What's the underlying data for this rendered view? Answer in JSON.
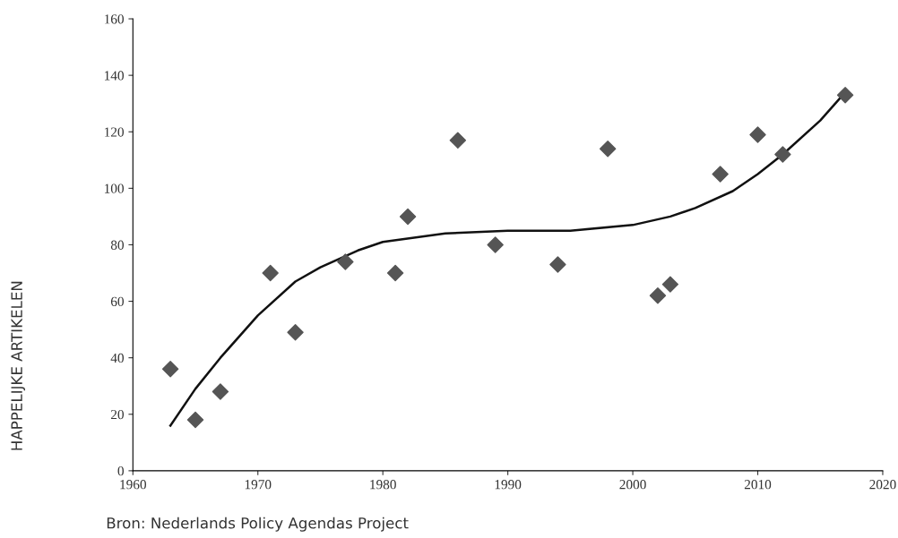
{
  "chart_data": {
    "type": "scatter",
    "annotations": [
      "Bron: Nederlands Policy Agendas Project",
      "HAPPELIJKE ARTIKELEN"
    ],
    "xlim": [
      1960,
      2020
    ],
    "xticks": [
      1960,
      1970,
      1980,
      1990,
      2000,
      2010,
      2020
    ],
    "ylim": [
      0,
      160
    ],
    "yticks": [
      0,
      20,
      40,
      60,
      80,
      100,
      120,
      140,
      160
    ],
    "grid": false,
    "legend": false,
    "series": [
      {
        "color": "#555555",
        "marker": "diamond",
        "x": [
          1963,
          1965,
          1967,
          1971,
          1973,
          1977,
          1981,
          1982,
          1986,
          1989,
          1994,
          1998,
          2002,
          2003,
          2007,
          2010,
          2012,
          2017
        ],
        "values": [
          36,
          18,
          28,
          70,
          49,
          74,
          70,
          90,
          117,
          80,
          73,
          114,
          62,
          66,
          105,
          119,
          112,
          133
        ]
      },
      {
        "type": "line",
        "color": "#111111",
        "marker": "none",
        "line_style": "solid",
        "x": [
          1963,
          1965,
          1967,
          1970,
          1973,
          1975,
          1978,
          1980,
          1985,
          1990,
          1995,
          2000,
          2003,
          2005,
          2008,
          2010,
          2012,
          2015,
          2017
        ],
        "values": [
          16,
          29,
          40,
          55,
          67,
          72,
          78,
          81,
          84,
          85,
          85,
          87,
          90,
          93,
          99,
          105,
          112,
          124,
          134
        ]
      }
    ]
  }
}
